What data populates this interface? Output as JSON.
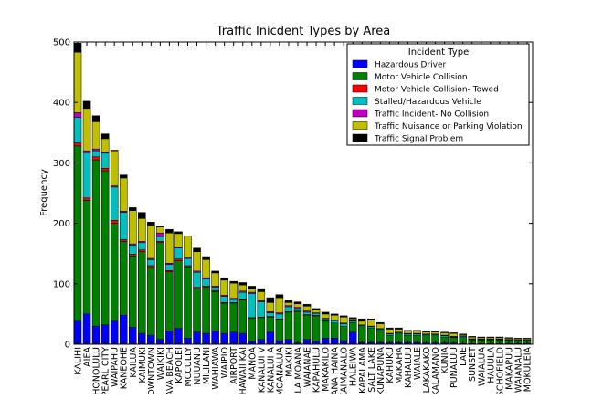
{
  "chart_data": {
    "type": "bar",
    "stacked": true,
    "title": "Traffic Inicdent Types by Area",
    "xlabel": "",
    "ylabel": "Frequency",
    "ylim": [
      0,
      500
    ],
    "yticks": [
      0,
      100,
      200,
      300,
      400,
      500
    ],
    "legend_title": "Incident Type",
    "legend_position": "top-right",
    "colors": [
      "#0000ff",
      "#008000",
      "#ff0000",
      "#00bfbf",
      "#bf00bf",
      "#bfbf00",
      "#000000"
    ],
    "categories": [
      "KALIHI",
      "AIEA",
      "HONOLULU",
      "PEARL CITY",
      "WAIPAHU",
      "KANEOHE",
      "KAILUA",
      "KAIMUKI",
      "DOWNTOWN",
      "WAIKIKI",
      "NAVA BEACH",
      "KAPOLEI",
      "MCCULLY",
      "NUUANU",
      "MILILANI",
      "WAHIAWA",
      "WAIPIO",
      "AIRPORT",
      "HAWAII KAI",
      "MANOA",
      "KANALUI V",
      "KANALUI A",
      "MOANALUA",
      "MAKIKI",
      "ALA MOANA",
      "WAIANAE",
      "KAPAHULU",
      "MAKAKILO",
      "HANA HAINA",
      "KAIMANALO",
      "HALEIWA",
      "KAPALAMA",
      "SALT LAKE",
      "KUNAPUNA",
      "KAHUKU",
      "MAKAHA",
      "KAHALUU",
      "WAIALE",
      "LAKAKAKO",
      "KALAMANO",
      "KUNIA",
      "PUNALUU",
      "LAIE",
      "SUNSET",
      "WAIALUA",
      "HAUULA",
      "SCHOFIELD",
      "MAKAPUU",
      "WAIANALU",
      "MOKULEIA"
    ],
    "series": [
      {
        "name": "Hazardous Driver",
        "values": [
          38,
          50,
          30,
          32,
          38,
          48,
          28,
          18,
          15,
          8,
          22,
          26,
          10,
          20,
          18,
          22,
          18,
          20,
          18,
          5,
          8,
          20,
          6,
          8,
          2,
          8,
          5,
          10,
          10,
          6,
          20,
          3,
          3,
          3,
          3,
          3,
          3,
          3,
          2,
          2,
          2,
          2,
          1,
          1,
          1,
          1,
          1,
          1,
          1,
          1
        ]
      },
      {
        "name": "Motor Vehicle Collision",
        "values": [
          290,
          188,
          275,
          255,
          162,
          122,
          118,
          135,
          112,
          160,
          98,
          112,
          118,
          72,
          76,
          65,
          50,
          48,
          55,
          38,
          36,
          25,
          35,
          45,
          52,
          40,
          42,
          28,
          25,
          24,
          16,
          26,
          24,
          20,
          12,
          14,
          12,
          12,
          12,
          12,
          10,
          9,
          10,
          6,
          6,
          6,
          6,
          5,
          5,
          5
        ]
      },
      {
        "name": "Motor Vehicle Collision- Towed",
        "values": [
          5,
          4,
          5,
          4,
          5,
          3,
          3,
          3,
          3,
          2,
          2,
          3,
          2,
          2,
          2,
          2,
          1,
          1,
          1,
          1,
          1,
          1,
          1,
          1,
          1,
          1,
          1,
          1,
          0,
          0,
          0,
          0,
          0,
          0,
          0,
          0,
          0,
          0,
          0,
          0,
          0,
          0,
          0,
          0,
          0,
          0,
          0,
          0,
          0,
          0
        ]
      },
      {
        "name": "Stalled/Hazardous Vehicle",
        "values": [
          42,
          75,
          10,
          25,
          55,
          45,
          15,
          12,
          10,
          8,
          10,
          18,
          12,
          25,
          12,
          5,
          10,
          5,
          12,
          40,
          25,
          6,
          8,
          8,
          4,
          4,
          3,
          3,
          4,
          4,
          2,
          2,
          2,
          2,
          2,
          2,
          2,
          2,
          2,
          2,
          2,
          1,
          2,
          1,
          1,
          1,
          1,
          1,
          0,
          0
        ]
      },
      {
        "name": "Traffic Incident- No Collision",
        "values": [
          8,
          3,
          3,
          2,
          2,
          2,
          2,
          2,
          2,
          6,
          2,
          2,
          2,
          2,
          2,
          2,
          2,
          2,
          2,
          2,
          2,
          2,
          2,
          2,
          2,
          2,
          1,
          1,
          1,
          1,
          1,
          1,
          1,
          1,
          1,
          1,
          1,
          1,
          1,
          1,
          1,
          1,
          1,
          1,
          1,
          1,
          1,
          1,
          1,
          1
        ]
      },
      {
        "name": "Traffic Nuisance or Parking Violation",
        "values": [
          100,
          70,
          45,
          22,
          58,
          55,
          55,
          38,
          55,
          10,
          50,
          22,
          35,
          32,
          30,
          22,
          25,
          25,
          10,
          5,
          15,
          15,
          25,
          5,
          6,
          8,
          5,
          7,
          8,
          10,
          3,
          6,
          10,
          8,
          7,
          5,
          4,
          4,
          3,
          3,
          4,
          5,
          2,
          3,
          2,
          2,
          2,
          2,
          2,
          2
        ]
      },
      {
        "name": "Traffic Signal Problem",
        "values": [
          15,
          12,
          10,
          8,
          1,
          5,
          5,
          10,
          5,
          2,
          6,
          3,
          0,
          6,
          5,
          3,
          4,
          3,
          4,
          5,
          5,
          8,
          5,
          3,
          3,
          3,
          2,
          3,
          2,
          2,
          2,
          4,
          2,
          2,
          2,
          2,
          1,
          1,
          1,
          1,
          1,
          1,
          1,
          1,
          1,
          1,
          1,
          1,
          1,
          1
        ]
      }
    ]
  }
}
